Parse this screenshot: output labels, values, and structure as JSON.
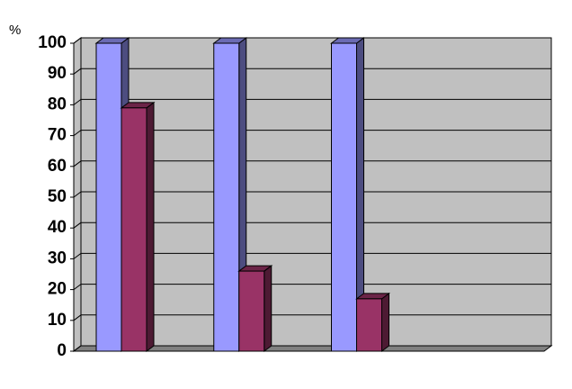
{
  "chart_data": {
    "type": "bar3d",
    "ylabel": "%",
    "categories": [
      null,
      null,
      null,
      null
    ],
    "series": [
      {
        "color": "#9999ff",
        "values": [
          100,
          100,
          100,
          null
        ]
      },
      {
        "color": "#993366",
        "values": [
          79,
          26,
          17,
          null
        ]
      }
    ],
    "ylim": [
      0,
      100
    ],
    "yticks": [
      0,
      10,
      20,
      30,
      40,
      50,
      60,
      70,
      80,
      90,
      100
    ],
    "grid": true
  }
}
